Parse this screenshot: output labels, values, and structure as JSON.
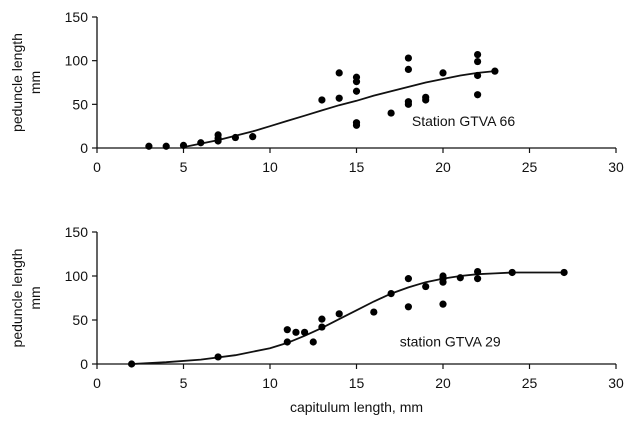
{
  "chart_data": [
    {
      "type": "scatter",
      "annotation": "Station GTVA 66",
      "ylabel": [
        "peduncle length",
        "mm"
      ],
      "xlabel": "",
      "xlim": [
        0,
        30
      ],
      "ylim": [
        0,
        150
      ],
      "xticks": [
        "0",
        "5",
        "10",
        "15",
        "20",
        "25",
        "30"
      ],
      "yticks": [
        "0",
        "50",
        "100",
        "150"
      ],
      "grid": false,
      "points": [
        [
          3,
          2
        ],
        [
          4,
          2
        ],
        [
          5,
          3
        ],
        [
          6,
          6
        ],
        [
          7,
          8
        ],
        [
          7,
          11
        ],
        [
          7,
          15
        ],
        [
          8,
          12
        ],
        [
          9,
          13
        ],
        [
          13,
          55
        ],
        [
          14,
          57
        ],
        [
          14,
          86
        ],
        [
          15,
          26
        ],
        [
          15,
          29
        ],
        [
          15,
          65
        ],
        [
          15,
          76
        ],
        [
          15,
          81
        ],
        [
          17,
          40
        ],
        [
          18,
          50
        ],
        [
          18,
          53
        ],
        [
          18,
          90
        ],
        [
          18,
          103
        ],
        [
          19,
          55
        ],
        [
          19,
          58
        ],
        [
          20,
          86
        ],
        [
          22,
          61
        ],
        [
          22,
          83
        ],
        [
          22,
          99
        ],
        [
          22,
          107
        ],
        [
          23,
          88
        ]
      ],
      "fit_curve": [
        [
          5,
          1
        ],
        [
          6,
          5
        ],
        [
          7,
          9
        ],
        [
          8,
          14
        ],
        [
          9,
          19
        ],
        [
          10,
          25
        ],
        [
          11,
          31
        ],
        [
          12,
          37
        ],
        [
          13,
          43
        ],
        [
          14,
          49
        ],
        [
          15,
          54
        ],
        [
          16,
          60
        ],
        [
          17,
          65
        ],
        [
          18,
          70
        ],
        [
          19,
          75
        ],
        [
          20,
          79
        ],
        [
          21,
          83
        ],
        [
          22,
          86
        ],
        [
          23,
          88
        ]
      ]
    },
    {
      "type": "scatter",
      "annotation": "station GTVA 29",
      "ylabel": [
        "peduncle length",
        "mm"
      ],
      "xlabel": "capitulum length, mm",
      "xlim": [
        0,
        30
      ],
      "ylim": [
        0,
        150
      ],
      "xticks": [
        "0",
        "5",
        "10",
        "15",
        "20",
        "25",
        "30"
      ],
      "yticks": [
        "0",
        "50",
        "100",
        "150"
      ],
      "grid": false,
      "points": [
        [
          2,
          0
        ],
        [
          7,
          8
        ],
        [
          11,
          25
        ],
        [
          11,
          39
        ],
        [
          11.5,
          36
        ],
        [
          12,
          36
        ],
        [
          12.5,
          25
        ],
        [
          13,
          42
        ],
        [
          13,
          51
        ],
        [
          14,
          57
        ],
        [
          16,
          59
        ],
        [
          17,
          80
        ],
        [
          18,
          65
        ],
        [
          18,
          97
        ],
        [
          19,
          88
        ],
        [
          20,
          68
        ],
        [
          20,
          93
        ],
        [
          20,
          97
        ],
        [
          20,
          100
        ],
        [
          21,
          98
        ],
        [
          22,
          97
        ],
        [
          22,
          105
        ],
        [
          24,
          104
        ],
        [
          27,
          104
        ]
      ],
      "fit_curve": [
        [
          2,
          0
        ],
        [
          4,
          2
        ],
        [
          6,
          5
        ],
        [
          8,
          10
        ],
        [
          10,
          18
        ],
        [
          11,
          24
        ],
        [
          12,
          32
        ],
        [
          13,
          41
        ],
        [
          14,
          51
        ],
        [
          15,
          61
        ],
        [
          16,
          71
        ],
        [
          17,
          80
        ],
        [
          18,
          87
        ],
        [
          19,
          93
        ],
        [
          20,
          97
        ],
        [
          21,
          100
        ],
        [
          22,
          102
        ],
        [
          23,
          103
        ],
        [
          24,
          104
        ],
        [
          25,
          104
        ],
        [
          26,
          104
        ],
        [
          27,
          104
        ]
      ]
    }
  ]
}
